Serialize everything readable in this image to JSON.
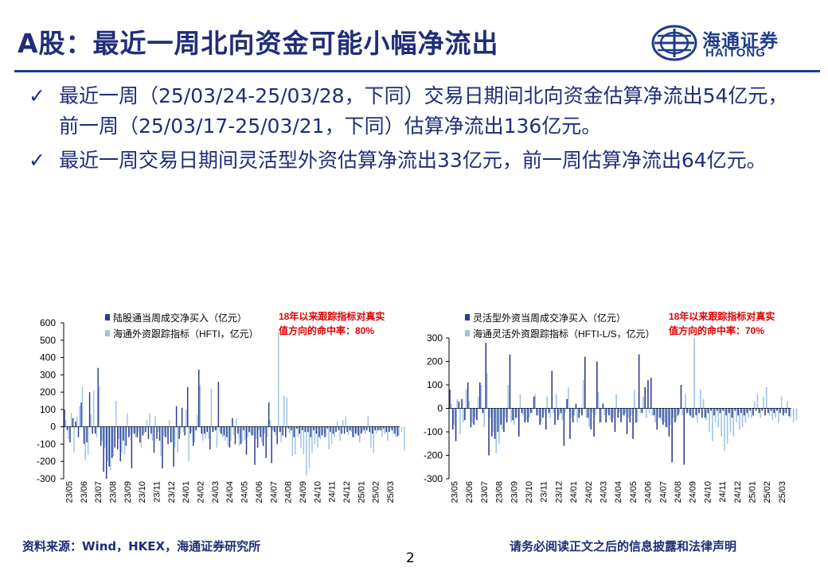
{
  "header": {
    "title": "A股：最近一周北向资金可能小幅净流出",
    "logo_cn": "海通证券",
    "logo_en": "HAITONG"
  },
  "bullets": [
    "最近一周（25/03/24-25/03/28，下同）交易日期间北向资金估算净流出54亿元，前一周（25/03/17-25/03/21，下同）估算净流出136亿元。",
    "最近一周交易日期间灵活型外资估算净流出33亿元，前一周估算净流出64亿元。"
  ],
  "footer": {
    "source": "资料来源：Wind，HKEX，海通证券研究所",
    "disclaimer": "请务必阅读正文之后的信息披露和法律声明",
    "page_number": "2"
  },
  "colors": {
    "brand": "#1f3c8c",
    "dark_series": "#2e3a8f",
    "light_series": "#9dc3e6",
    "annotation": "#e00000"
  },
  "chart_data": [
    {
      "type": "bar",
      "annotation": "18年以来跟踪指标对真实值方向的命中率：80%",
      "legend_position": "top",
      "ylim": [
        -300,
        600
      ],
      "yticks": [
        -300,
        -200,
        -100,
        0,
        100,
        200,
        300,
        400,
        500,
        600
      ],
      "xticks": [
        "23/05",
        "23/06",
        "23/07",
        "23/08",
        "23/09",
        "23/10",
        "23/11",
        "23/12",
        "24/01",
        "24/02",
        "24/03",
        "24/04",
        "24/05",
        "24/06",
        "24/07",
        "24/08",
        "24/09",
        "24/10",
        "24/11",
        "24/12",
        "25/01",
        "25/02",
        "25/03"
      ],
      "series": [
        {
          "name": "陆股通当周成交净买入（亿元）",
          "values": [
            100,
            -20,
            -90,
            50,
            30,
            -60,
            140,
            -100,
            -90,
            200,
            -40,
            -40,
            340,
            -110,
            -260,
            -300,
            -230,
            -180,
            -120,
            -130,
            -200,
            -80,
            -110,
            -60,
            -240,
            -40,
            -60,
            -90,
            -50,
            -30,
            -70,
            -40,
            -150,
            -70,
            -80,
            -240,
            -60,
            -100,
            -90,
            -230,
            120,
            -70,
            110,
            -50,
            230,
            -40,
            -110,
            -20,
            330,
            -40,
            -40,
            -30,
            -130,
            -30,
            -20,
            260,
            -40,
            -50,
            -60,
            -120,
            50,
            -100,
            -40,
            -100,
            -20,
            -160,
            -30,
            -50,
            -220,
            -120,
            -60,
            -110,
            -180,
            140,
            -210,
            -30,
            -100,
            -30,
            -50,
            -60,
            -10,
            -20,
            -60,
            -10,
            -40,
            -20,
            -30,
            -30,
            -60,
            -20,
            -40,
            -60,
            -50,
            -60,
            -10,
            -30,
            -40,
            -30,
            -20,
            -40,
            -40,
            -30,
            -20,
            -60,
            -40,
            -50,
            -40,
            -20,
            -20,
            -30,
            -40,
            -20,
            -20,
            -20,
            -10,
            -30,
            -30,
            -20,
            -40,
            -54
          ]
        },
        {
          "name": "海通外资跟踪指标（HFTI，亿元）",
          "values": [
            40,
            -70,
            80,
            -150,
            60,
            120,
            230,
            -190,
            -160,
            70,
            210,
            -60,
            230,
            -80,
            -120,
            -200,
            -250,
            -170,
            150,
            -70,
            -150,
            -160,
            80,
            -50,
            -40,
            -60,
            -30,
            -120,
            -40,
            40,
            80,
            -80,
            60,
            -30,
            -170,
            -50,
            -60,
            40,
            -90,
            -120,
            -150,
            -40,
            -30,
            100,
            -200,
            -30,
            -90,
            70,
            240,
            -80,
            -70,
            -70,
            220,
            -20,
            -120,
            -30,
            -60,
            -80,
            -110,
            -80,
            -50,
            50,
            -110,
            -90,
            -80,
            -60,
            -40,
            -50,
            -70,
            -20,
            -90,
            -40,
            -60,
            40,
            -20,
            -50,
            550,
            -90,
            180,
            170,
            -40,
            -170,
            -160,
            -60,
            -120,
            -160,
            -280,
            -240,
            -150,
            -100,
            -120,
            -70,
            -40,
            -60,
            -130,
            -100,
            -60,
            30,
            -80,
            40,
            60,
            -50,
            -30,
            -60,
            -40,
            -90,
            -30,
            -40,
            60,
            -120,
            -150,
            -40,
            -20,
            -60,
            -40,
            -80,
            -10,
            -40,
            -60,
            -50,
            -30,
            -136
          ]
        }
      ]
    },
    {
      "type": "bar",
      "annotation": "18年以来跟踪指标对真实值方向的命中率：70%",
      "legend_position": "top",
      "ylim": [
        -300,
        300
      ],
      "yticks": [
        -300,
        -200,
        -100,
        0,
        100,
        200,
        300
      ],
      "xticks": [
        "23/05",
        "23/06",
        "23/07",
        "23/08",
        "23/09",
        "23/10",
        "23/11",
        "23/12",
        "24/01",
        "24/02",
        "24/03",
        "24/04",
        "24/05",
        "24/06",
        "24/07",
        "24/08",
        "24/09",
        "24/10",
        "24/11",
        "24/12",
        "25/01",
        "25/02",
        "25/03"
      ],
      "series": [
        {
          "name": "灵活型外资当周成交净买入（亿元）",
          "values": [
            80,
            -90,
            -140,
            30,
            40,
            -50,
            110,
            -80,
            -70,
            -50,
            110,
            -20,
            280,
            -200,
            -120,
            -130,
            -100,
            -70,
            -100,
            -60,
            230,
            -50,
            -40,
            -120,
            -20,
            -60,
            -60,
            -20,
            50,
            -30,
            -70,
            -40,
            -90,
            -20,
            160,
            -70,
            -50,
            -20,
            -160,
            40,
            -130,
            -60,
            20,
            -40,
            -30,
            220,
            -40,
            -90,
            -120,
            200,
            -60,
            20,
            -60,
            -30,
            -60,
            -100,
            -40,
            -60,
            -30,
            -110,
            -60,
            -130,
            -60,
            230,
            -20,
            90,
            120,
            130,
            -30,
            -90,
            -40,
            -70,
            -80,
            -120,
            -230,
            -60,
            -30,
            100,
            -240,
            -20,
            -30,
            -40,
            -30,
            -20,
            -40,
            -40,
            -20,
            -10,
            -30,
            -10,
            -20,
            -10,
            -30,
            -20,
            -40,
            -10,
            -30,
            -20,
            -30,
            -20,
            -10,
            -30,
            -10,
            -20,
            -10,
            -30,
            -20,
            -10,
            -20,
            -10,
            -20,
            -30,
            -20,
            -33
          ]
        },
        {
          "name": "海通灵活外资跟踪指标（HFTI-L/S，亿元）",
          "values": [
            20,
            -70,
            40,
            -110,
            -60,
            80,
            30,
            -60,
            -40,
            50,
            100,
            -80,
            150,
            -40,
            -100,
            -190,
            -150,
            -90,
            -40,
            100,
            -60,
            -70,
            -40,
            60,
            -30,
            -50,
            -40,
            -20,
            60,
            -30,
            -60,
            -20,
            50,
            -40,
            -20,
            60,
            -30,
            -50,
            -20,
            90,
            -40,
            -30,
            -60,
            -20,
            120,
            -40,
            -80,
            -20,
            -30,
            70,
            -60,
            -30,
            -20,
            -50,
            -40,
            60,
            -20,
            -30,
            -20,
            -40,
            -30,
            80,
            -60,
            -20,
            50,
            -40,
            -20,
            -30,
            -60,
            -40,
            -50,
            -60,
            -80,
            -70,
            -40,
            -50,
            -20,
            -30,
            60,
            -20,
            -40,
            300,
            -60,
            80,
            40,
            -50,
            -100,
            -140,
            -60,
            -80,
            -120,
            -180,
            -150,
            -100,
            -120,
            -60,
            -90,
            -80,
            -60,
            -40,
            -40,
            30,
            60,
            -40,
            50,
            90,
            -30,
            -50,
            -40,
            -60,
            50,
            -20,
            30,
            -40,
            -60,
            -50,
            -20,
            -64
          ]
        }
      ]
    }
  ]
}
